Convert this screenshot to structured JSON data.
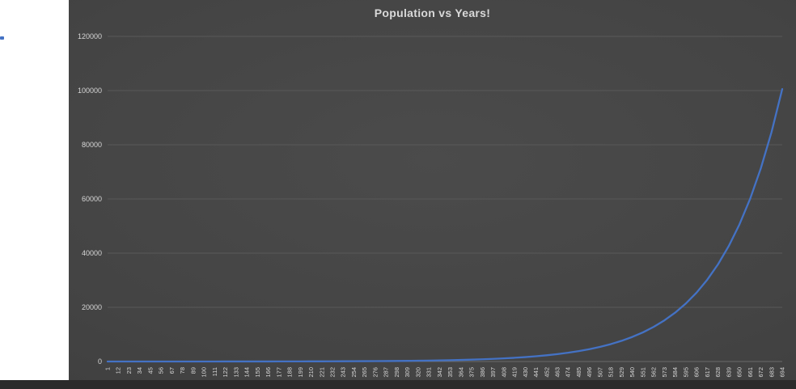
{
  "page": {
    "background_color": "#ffffff",
    "bottom_bar_color": "#2b2b2b",
    "marker_color": "#4472c4"
  },
  "chart_data": {
    "type": "line",
    "title": "Population vs Years!",
    "xlabel": "",
    "ylabel": "",
    "legend": "none",
    "grid": true,
    "ylim": [
      0,
      120000
    ],
    "y_ticks": [
      0,
      20000,
      40000,
      60000,
      80000,
      100000,
      120000
    ],
    "y_tick_labels": [
      "0",
      "20000",
      "40000",
      "60000",
      "80000",
      "100000",
      "120000"
    ],
    "categories": [
      1,
      12,
      23,
      34,
      45,
      56,
      67,
      78,
      89,
      100,
      111,
      122,
      133,
      144,
      155,
      166,
      177,
      188,
      199,
      210,
      221,
      232,
      243,
      254,
      265,
      276,
      287,
      298,
      309,
      320,
      331,
      342,
      353,
      364,
      375,
      386,
      397,
      408,
      419,
      430,
      441,
      452,
      463,
      474,
      485,
      496,
      507,
      518,
      529,
      540,
      551,
      562,
      573,
      584,
      595,
      606,
      617,
      628,
      639,
      650,
      661,
      672,
      683,
      694
    ],
    "values": [
      2,
      2.4,
      2.8,
      3.3,
      4,
      4.7,
      5.6,
      6.7,
      7.9,
      9.4,
      11,
      13,
      16,
      19,
      22,
      26,
      31,
      37,
      44,
      52,
      62,
      74,
      88,
      104,
      124,
      147,
      174,
      207,
      246,
      292,
      347,
      411,
      489,
      580,
      689,
      818,
      972,
      1154,
      1370,
      1627,
      1932,
      2294,
      2724,
      3235,
      3842,
      4562,
      5417,
      6433,
      7639,
      9071,
      10771,
      12790,
      15188,
      18036,
      21417,
      25432,
      30200,
      35862,
      42585,
      50569,
      60050,
      71308,
      84678,
      100553
    ],
    "line_color": "#4472c4",
    "grid_color": "#595959",
    "axis_line_color": "#6a6a6a",
    "text_color": "#d6d6d6",
    "panel_background": "#434343",
    "title_color": "#d9d9d9"
  }
}
